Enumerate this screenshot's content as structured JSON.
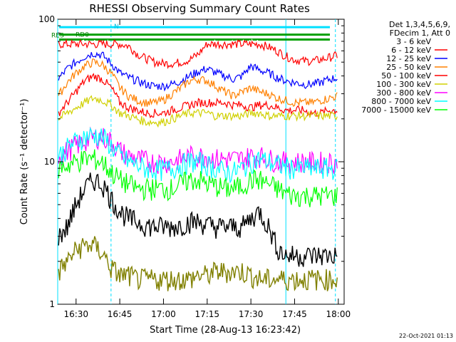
{
  "chart_data": {
    "type": "line",
    "title": "RHESSI Observing Summary Count Rates",
    "xlabel": "Start Time (28-Aug-13 16:23:42)",
    "ylabel": "Count Rate (s⁻¹ detector⁻¹)",
    "yscale": "log",
    "ylim": [
      1,
      100
    ],
    "xlim_minutes": [
      16.4,
      18.0
    ],
    "x_ticks": [
      "16:30",
      "16:45",
      "17:00",
      "17:15",
      "17:30",
      "17:45",
      "18:00"
    ],
    "y_ticks": [
      "1",
      "10",
      "100"
    ],
    "legend_position": "right",
    "legend_header": [
      "Det 1,3,4,5,6,9,",
      "FDecim 1, Att 0"
    ],
    "footer_date": "22-Oct-2021 01:13",
    "annotations": [
      "RD0",
      "N",
      "RES"
    ],
    "night_boundaries": [
      "16:23:42",
      "16:42",
      "17:42",
      "17:59"
    ],
    "x": [
      "16:24",
      "16:27",
      "16:30",
      "16:33",
      "16:36",
      "16:39",
      "16:42",
      "16:45",
      "16:48",
      "16:51",
      "16:54",
      "16:57",
      "17:00",
      "17:03",
      "17:06",
      "17:09",
      "17:12",
      "17:15",
      "17:18",
      "17:21",
      "17:24",
      "17:27",
      "17:30",
      "17:33",
      "17:36",
      "17:39",
      "17:42",
      "17:45",
      "17:48",
      "17:51",
      "17:54",
      "17:57",
      "18:00"
    ],
    "series": [
      {
        "name": "3 - 6 keV",
        "color": "#ffffff",
        "values": [
          67,
          67,
          67,
          67,
          67,
          67,
          67,
          67,
          65,
          57,
          53,
          50,
          49,
          49,
          50,
          52,
          57,
          67,
          67,
          67,
          67,
          67,
          67,
          67,
          64,
          60,
          55,
          52,
          51,
          51,
          52,
          54,
          56
        ]
      },
      {
        "name": "6 - 12 keV",
        "color": "#ff0000",
        "values": [
          67,
          67,
          67,
          67,
          67,
          67,
          67,
          67,
          65,
          57,
          53,
          50,
          49,
          49,
          50,
          52,
          57,
          67,
          67,
          67,
          67,
          67,
          67,
          67,
          64,
          60,
          55,
          52,
          51,
          51,
          52,
          54,
          56
        ]
      },
      {
        "name": "12 - 25 keV",
        "color": "#0000ff",
        "values": [
          38,
          45,
          50,
          55,
          58,
          56,
          49,
          42,
          39,
          37,
          35,
          34,
          34,
          35,
          37,
          40,
          43,
          45,
          42,
          40,
          38,
          40,
          47,
          44,
          42,
          39,
          37,
          36,
          35,
          35,
          36,
          38,
          39
        ]
      },
      {
        "name": "25 - 50 keV",
        "color": "#ff8000",
        "values": [
          29,
          36,
          42,
          47,
          50,
          48,
          42,
          33,
          29,
          27,
          26,
          26,
          27,
          30,
          33,
          37,
          38,
          37,
          34,
          31,
          29,
          31,
          33,
          31,
          30,
          28,
          27,
          26,
          26,
          26,
          27,
          28,
          29
        ]
      },
      {
        "name": "50 - 100 keV",
        "color": "#ff0000",
        "values": [
          22,
          26,
          31,
          37,
          40,
          38,
          33,
          26,
          24,
          23,
          22,
          22,
          22,
          23,
          24,
          25,
          26,
          26,
          26,
          26,
          25,
          25,
          24,
          25,
          25,
          24,
          23,
          23,
          23,
          22,
          22,
          23,
          23
        ]
      },
      {
        "name": "100 - 300 keV",
        "color": "#d0d000",
        "values": [
          20,
          22,
          24,
          26,
          28,
          27,
          25,
          22,
          21,
          20,
          19,
          19,
          19,
          20,
          21,
          22,
          22,
          22,
          21,
          21,
          21,
          21,
          22,
          22,
          21,
          21,
          21,
          21,
          21,
          21,
          21,
          21,
          21
        ]
      },
      {
        "name": "300 - 800 keV",
        "color": "#ff00ff",
        "values": [
          11,
          12,
          13,
          14,
          15,
          15,
          14,
          12,
          11,
          10.5,
          10.2,
          10,
          10,
          10,
          10.5,
          11,
          11,
          11,
          10.5,
          10.5,
          10.5,
          10.5,
          11,
          11,
          10.5,
          10.2,
          10,
          10,
          10,
          10,
          10,
          10,
          10
        ]
      },
      {
        "name": "800 - 7000 keV",
        "color": "#00ffff",
        "values": [
          11,
          12.5,
          14,
          15,
          15.5,
          15,
          13,
          11,
          10,
          9.5,
          9,
          8.8,
          8.8,
          9,
          9.5,
          10,
          10,
          9.5,
          9,
          8.5,
          8.5,
          9,
          10,
          10.5,
          10,
          9.5,
          9.2,
          9,
          9,
          9,
          9,
          9,
          9
        ]
      },
      {
        "name": "7000 - 15000 keV",
        "color": "#00ff00",
        "values": [
          9,
          9.5,
          10,
          10.5,
          10.5,
          10,
          8.5,
          7.5,
          7,
          6.5,
          6.5,
          6.5,
          6.5,
          6.5,
          7,
          7.5,
          7.5,
          7,
          6.8,
          6.5,
          6.5,
          6.8,
          7.5,
          7.5,
          7,
          6.5,
          6,
          5.8,
          5.8,
          5.8,
          5.8,
          5.8,
          5.8
        ]
      },
      {
        "name": "",
        "color": "#000000",
        "values": [
          3,
          3.5,
          5,
          6.5,
          7.5,
          7,
          5.5,
          4.5,
          4,
          3.8,
          3.6,
          3.5,
          3.5,
          3.5,
          3.6,
          3.8,
          3.8,
          3.6,
          3.5,
          3.5,
          3.5,
          3.5,
          4,
          4.5,
          3.5,
          2.5,
          2.2,
          2.2,
          2.2,
          2.2,
          2.2,
          2.2,
          2.2
        ]
      },
      {
        "name": "",
        "color": "#808000",
        "values": [
          1.7,
          2,
          2.4,
          2.6,
          2.6,
          2.3,
          1.8,
          1.6,
          1.6,
          1.5,
          1.5,
          1.5,
          1.5,
          1.5,
          1.5,
          1.5,
          1.6,
          1.6,
          1.7,
          1.7,
          1.7,
          1.7,
          1.6,
          1.5,
          1.5,
          1.5,
          1.5,
          1.5,
          1.5,
          1.5,
          1.5,
          1.5,
          1.5
        ]
      }
    ],
    "flag_lines": [
      {
        "label": "RD0",
        "color": "#00a000",
        "level": 72
      },
      {
        "label": "N",
        "color": "#00e0ff",
        "level": 88
      },
      {
        "label": "RES",
        "color": "#00a000",
        "level": 78
      }
    ]
  }
}
